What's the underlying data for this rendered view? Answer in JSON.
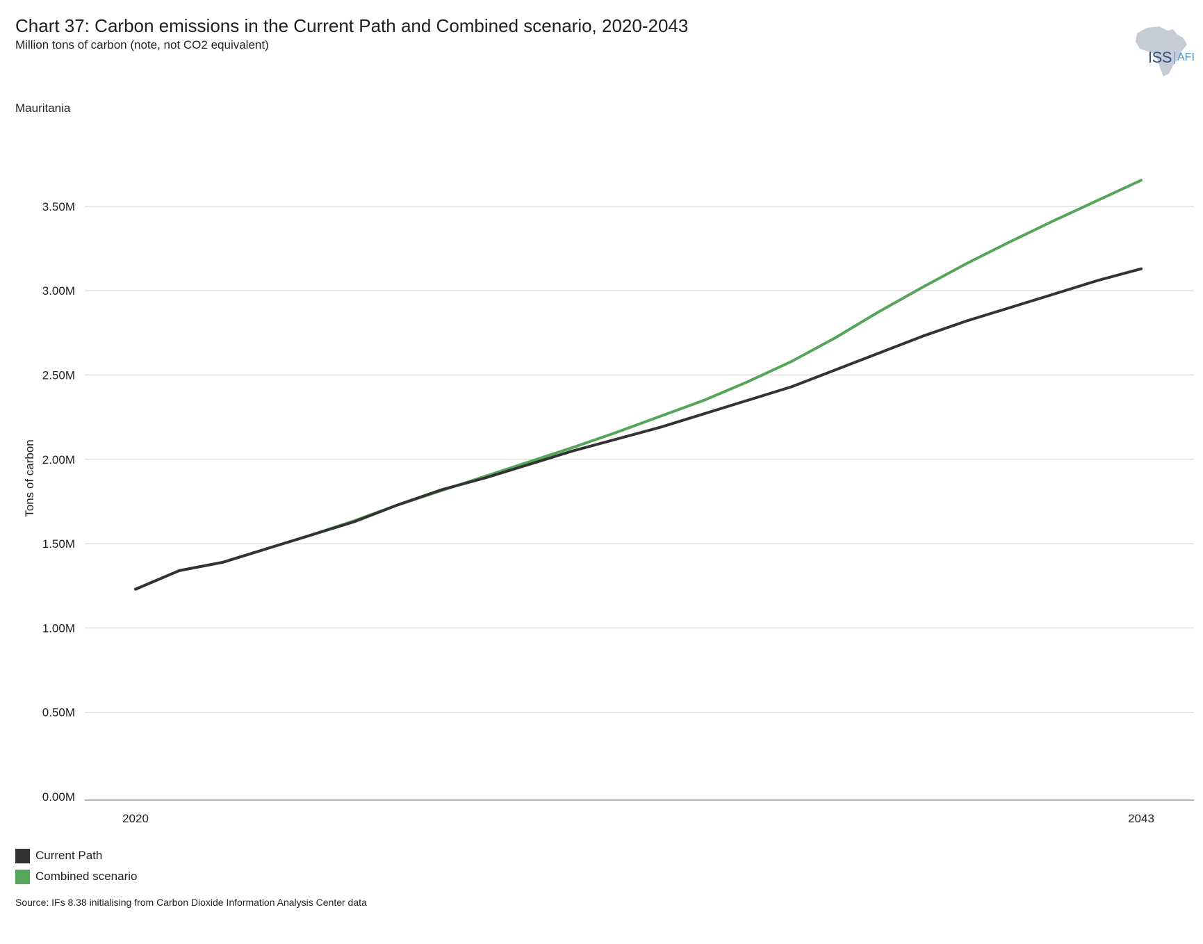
{
  "header": {
    "title": "Chart 37: Carbon emissions in the Current Path and Combined scenario, 2020-2043",
    "subtitle": "Million tons of carbon (note, not CO2 equivalent)",
    "country": "Mauritania"
  },
  "logo": {
    "iss": "ISS",
    "afi": "AFI"
  },
  "source": "Source: IFs 8.38 initialising from Carbon Dioxide Information Analysis Center data",
  "colors": {
    "current_path": "#333333",
    "combined": "#55a65a",
    "grid": "#e0e0e0",
    "axis": "#9a9a9a"
  },
  "chart_data": {
    "type": "line",
    "ylabel": "Tons of carbon",
    "ylim": [
      0,
      3.7
    ],
    "yticks": [
      0,
      0.5,
      1.0,
      1.5,
      2.0,
      2.5,
      3.0,
      3.5
    ],
    "ytick_labels": [
      "0.00M",
      "0.50M",
      "1.00M",
      "1.50M",
      "2.00M",
      "2.50M",
      "3.00M",
      "3.50M"
    ],
    "xlim": [
      2020,
      2043
    ],
    "xtick_labels": [
      "2020",
      "2043"
    ],
    "grid": true,
    "legend_position": "bottom-left",
    "x": [
      2020,
      2021,
      2022,
      2023,
      2024,
      2025,
      2026,
      2027,
      2028,
      2029,
      2030,
      2031,
      2032,
      2033,
      2034,
      2035,
      2036,
      2037,
      2038,
      2039,
      2040,
      2041,
      2042,
      2043
    ],
    "series": [
      {
        "name": "Current Path",
        "color": "#333333",
        "values": [
          1.23,
          1.34,
          1.39,
          1.47,
          1.55,
          1.63,
          1.73,
          1.82,
          1.89,
          1.97,
          2.05,
          2.12,
          2.19,
          2.27,
          2.35,
          2.43,
          2.53,
          2.63,
          2.73,
          2.82,
          2.9,
          2.98,
          3.06,
          3.13
        ]
      },
      {
        "name": "Combined scenario",
        "color": "#55a65a",
        "values": [
          1.23,
          1.34,
          1.39,
          1.47,
          1.55,
          1.635,
          1.73,
          1.815,
          1.9,
          1.985,
          2.07,
          2.16,
          2.255,
          2.35,
          2.46,
          2.58,
          2.72,
          2.875,
          3.02,
          3.16,
          3.29,
          3.415,
          3.535,
          3.655
        ]
      }
    ]
  }
}
